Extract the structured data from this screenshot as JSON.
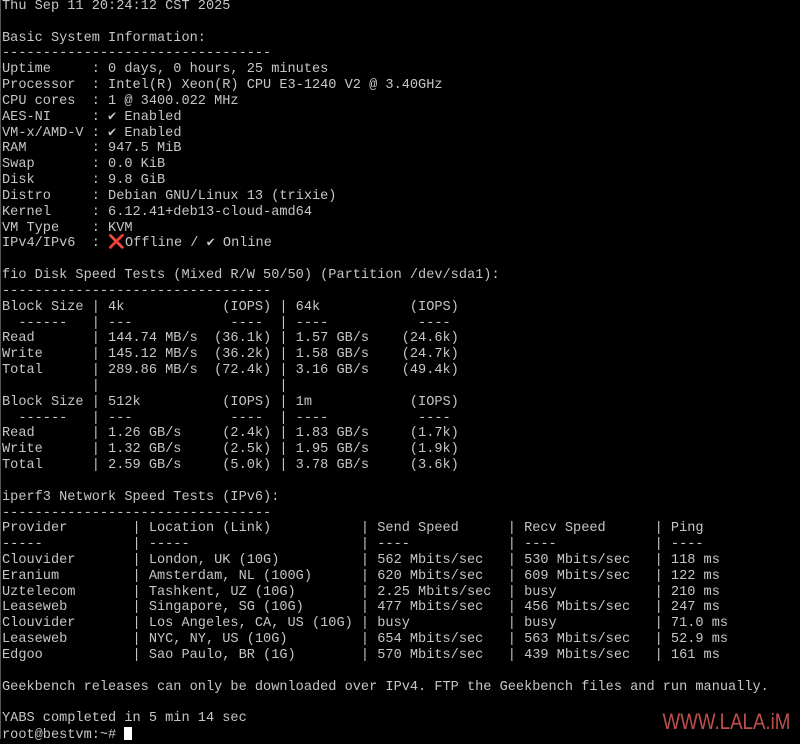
{
  "terminal": {
    "lines": [
      "Thu Sep 11 20:24:12 CST 2025",
      "",
      "Basic System Information:",
      "---------------------------------",
      "Uptime     : 0 days, 0 hours, 25 minutes",
      "Processor  : Intel(R) Xeon(R) CPU E3-1240 V2 @ 3.40GHz",
      "CPU cores  : 1 @ 3400.022 MHz",
      "AES-NI     : ✔ Enabled",
      "VM-x/AMD-V : ✔ Enabled",
      "RAM        : 947.5 MiB",
      "Swap       : 0.0 KiB",
      "Disk       : 9.8 GiB",
      "Distro     : Debian GNU/Linux 13 (trixie)",
      "Kernel     : 6.12.41+deb13-cloud-amd64",
      "VM Type    : KVM",
      "",
      "",
      "fio Disk Speed Tests (Mixed R/W 50/50) (Partition /dev/sda1):",
      "---------------------------------",
      "Block Size | 4k            (IOPS) | 64k           (IOPS)",
      "  ------   | ---            ----  | ----           ---- ",
      "Read       | 144.74 MB/s  (36.1k) | 1.57 GB/s    (24.6k)",
      "Write      | 145.12 MB/s  (36.2k) | 1.58 GB/s    (24.7k)",
      "Total      | 289.86 MB/s  (72.4k) | 3.16 GB/s    (49.4k)",
      "           |                      |",
      "Block Size | 512k          (IOPS) | 1m            (IOPS)",
      "  ------   | ---            ----  | ----           ---- ",
      "Read       | 1.26 GB/s     (2.4k) | 1.83 GB/s     (1.7k)",
      "Write      | 1.32 GB/s     (2.5k) | 1.95 GB/s     (1.9k)",
      "Total      | 2.59 GB/s     (5.0k) | 3.78 GB/s     (3.6k)",
      "",
      "iperf3 Network Speed Tests (IPv6):",
      "---------------------------------",
      "Provider        | Location (Link)           | Send Speed      | Recv Speed      | Ping",
      "-----           | -----                     | ----            | ----            | ----",
      "Clouvider       | London, UK (10G)          | 562 Mbits/sec   | 530 Mbits/sec   | 118 ms",
      "Eranium         | Amsterdam, NL (100G)      | 620 Mbits/sec   | 609 Mbits/sec   | 122 ms",
      "Uztelecom       | Tashkent, UZ (10G)        | 2.25 Mbits/sec  | busy            | 210 ms",
      "Leaseweb        | Singapore, SG (10G)       | 477 Mbits/sec   | 456 Mbits/sec   | 247 ms",
      "Clouvider       | Los Angeles, CA, US (10G) | busy            | busy            | 71.0 ms",
      "Leaseweb        | NYC, NY, US (10G)         | 654 Mbits/sec   | 563 Mbits/sec   | 52.9 ms",
      "Edgoo           | Sao Paulo, BR (1G)        | 570 Mbits/sec   | 439 Mbits/sec   | 161 ms",
      "",
      "Geekbench releases can only be downloaded over IPv4. FTP the Geekbench files and run manually.",
      "",
      "YABS completed in 5 min 14 sec"
    ],
    "ipv_line": {
      "prefix": "IPv4/IPv6  : ",
      "offline_icon": "❌",
      "offline": "Offline / ",
      "online": "✔ Online"
    },
    "prompt": "root@bestvm:~# "
  },
  "watermark": "WWW.LALA.iM",
  "colors": {
    "text": "#c6c6c6",
    "background": "#000000",
    "error": "#e02020",
    "watermark": "#c0504d"
  }
}
